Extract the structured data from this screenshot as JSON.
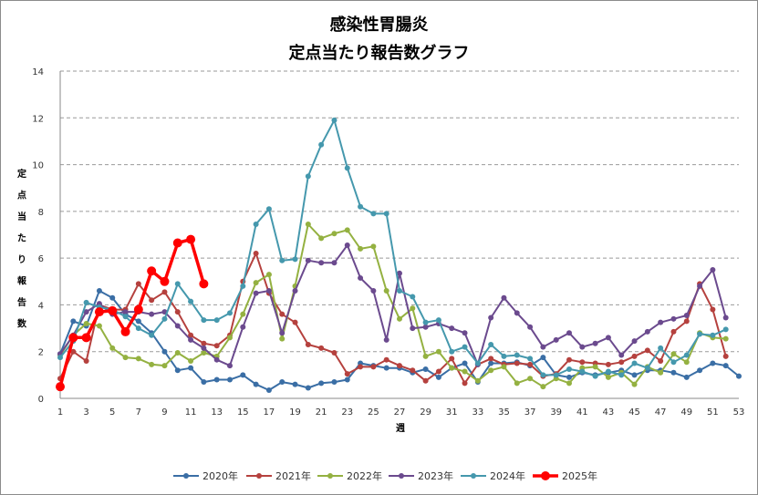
{
  "title_line1": "感染性胃腸炎",
  "title_line2": "定点当たり報告数グラフ",
  "chart_data": {
    "type": "line",
    "title": "感染性胃腸炎 定点当たり報告数グラフ",
    "xlabel": "週",
    "ylabel": "定点当たり報告数",
    "xlim": [
      1,
      53
    ],
    "ylim": [
      0,
      14
    ],
    "yticks": [
      0,
      2,
      4,
      6,
      8,
      10,
      12,
      14
    ],
    "xticks": [
      1,
      3,
      5,
      7,
      9,
      11,
      13,
      15,
      17,
      19,
      21,
      23,
      25,
      27,
      29,
      31,
      33,
      35,
      37,
      39,
      41,
      43,
      45,
      47,
      49,
      51,
      53
    ],
    "grid": "horizontal dashed",
    "legend": "bottom",
    "series": [
      {
        "name": "2020年",
        "color": "#3a6ea5",
        "width": 2,
        "marker": 3,
        "values": [
          1.9,
          3.3,
          3.1,
          4.6,
          4.3,
          3.6,
          3.3,
          2.8,
          2.0,
          1.2,
          1.3,
          0.7,
          0.8,
          0.8,
          1.0,
          0.6,
          0.35,
          0.7,
          0.6,
          0.45,
          0.65,
          0.7,
          0.8,
          1.5,
          1.4,
          1.3,
          1.3,
          1.1,
          1.25,
          0.9,
          1.3,
          1.5,
          0.7,
          1.5,
          1.5,
          1.55,
          1.4,
          1.75,
          1.0,
          0.9,
          1.1,
          1.0,
          1.1,
          1.2,
          1.0,
          1.2,
          1.2,
          1.1,
          0.9,
          1.2,
          1.5,
          1.4,
          0.95
        ]
      },
      {
        "name": "2021年",
        "color": "#b5413e",
        "width": 2,
        "marker": 3,
        "values": [
          0.85,
          2.0,
          1.6,
          4.0,
          3.8,
          3.8,
          4.9,
          4.2,
          4.55,
          3.7,
          2.7,
          2.35,
          2.25,
          2.7,
          5.0,
          6.2,
          4.5,
          3.6,
          3.25,
          2.3,
          2.15,
          1.95,
          1.05,
          1.35,
          1.35,
          1.65,
          1.4,
          1.2,
          0.75,
          1.15,
          1.7,
          0.65,
          1.45,
          1.7,
          1.45,
          1.5,
          1.45,
          0.95,
          1.05,
          1.65,
          1.55,
          1.5,
          1.45,
          1.55,
          1.8,
          2.05,
          1.6,
          2.85,
          3.3,
          4.9,
          3.8,
          1.8,
          null
        ]
      },
      {
        "name": "2022年",
        "color": "#94b141",
        "width": 2,
        "marker": 3,
        "values": [
          1.85,
          2.7,
          3.2,
          3.1,
          2.15,
          1.75,
          1.7,
          1.45,
          1.4,
          1.95,
          1.6,
          1.95,
          1.8,
          2.6,
          3.6,
          4.95,
          5.3,
          2.55,
          4.8,
          7.45,
          6.85,
          7.05,
          7.2,
          6.4,
          6.5,
          4.6,
          3.4,
          3.85,
          1.8,
          2.0,
          1.3,
          1.15,
          0.75,
          1.2,
          1.35,
          0.65,
          0.85,
          0.5,
          0.85,
          0.65,
          1.3,
          1.35,
          0.9,
          1.1,
          0.6,
          1.35,
          1.1,
          1.9,
          1.55,
          2.8,
          2.6,
          2.55,
          null
        ]
      },
      {
        "name": "2023年",
        "color": "#6b4a8e",
        "width": 2,
        "marker": 3,
        "values": [
          1.9,
          2.7,
          3.7,
          4.05,
          3.6,
          3.7,
          3.7,
          3.6,
          3.7,
          3.1,
          2.5,
          2.15,
          1.65,
          1.4,
          3.05,
          4.5,
          4.6,
          2.8,
          4.6,
          5.9,
          5.8,
          5.8,
          6.55,
          5.15,
          4.6,
          2.5,
          5.35,
          3.0,
          3.05,
          3.2,
          3.0,
          2.8,
          1.45,
          3.45,
          4.3,
          3.65,
          3.05,
          2.2,
          2.5,
          2.8,
          2.2,
          2.35,
          2.6,
          1.85,
          2.45,
          2.85,
          3.25,
          3.4,
          3.55,
          4.8,
          5.5,
          3.45,
          null
        ]
      },
      {
        "name": "2024年",
        "color": "#4598ad",
        "width": 2,
        "marker": 3,
        "values": [
          1.75,
          2.45,
          4.1,
          3.9,
          3.8,
          3.5,
          3.0,
          2.7,
          3.4,
          4.9,
          4.15,
          3.35,
          3.35,
          3.65,
          4.8,
          7.45,
          8.1,
          5.9,
          5.95,
          9.5,
          10.85,
          11.9,
          9.85,
          8.2,
          7.9,
          7.9,
          4.6,
          4.35,
          3.25,
          3.35,
          2.0,
          2.2,
          1.5,
          2.3,
          1.8,
          1.85,
          1.7,
          1.0,
          1.0,
          1.25,
          1.15,
          0.95,
          1.15,
          1.0,
          1.5,
          1.3,
          2.15,
          1.55,
          1.85,
          2.75,
          2.7,
          2.95,
          null
        ]
      },
      {
        "name": "2025年",
        "color": "#ff0000",
        "width": 3.5,
        "marker": 5,
        "values": [
          0.5,
          2.6,
          2.6,
          3.7,
          3.75,
          2.85,
          3.8,
          5.45,
          5.0,
          6.65,
          6.8,
          4.9,
          null,
          null,
          null,
          null,
          null,
          null,
          null,
          null,
          null,
          null,
          null,
          null,
          null,
          null,
          null,
          null,
          null,
          null,
          null,
          null,
          null,
          null,
          null,
          null,
          null,
          null,
          null,
          null,
          null,
          null,
          null,
          null,
          null,
          null,
          null,
          null,
          null,
          null,
          null,
          null,
          null
        ]
      }
    ]
  }
}
